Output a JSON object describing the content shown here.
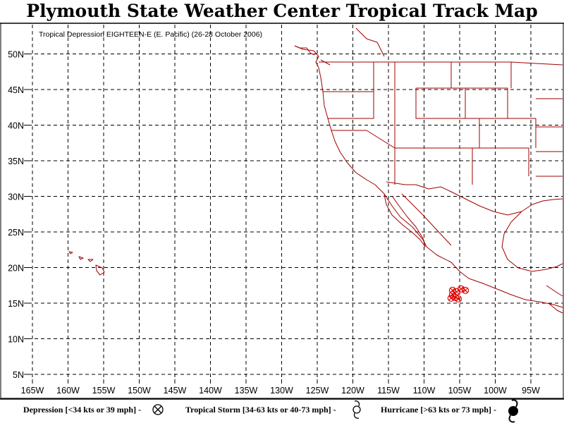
{
  "map": {
    "title": "Plymouth State Weather Center Tropical Track Map",
    "subtitle": "Tropical Depression EIGHTEEN-E (E. Pacific) (26-28 October 2006)",
    "lat_labels": [
      "50N",
      "45N",
      "40N",
      "35N",
      "30N",
      "25N",
      "20N",
      "15N",
      "10N",
      "5N"
    ],
    "lon_labels": [
      "165W",
      "160W",
      "155W",
      "150W",
      "145W",
      "140W",
      "135W",
      "130W",
      "125W",
      "120W",
      "115W",
      "110W",
      "105W",
      "100W",
      "95W"
    ],
    "lat_values": [
      50,
      45,
      40,
      35,
      30,
      25,
      20,
      15,
      10,
      5
    ],
    "lon_values": [
      -165,
      -160,
      -155,
      -150,
      -145,
      -140,
      -135,
      -130,
      -125,
      -120,
      -115,
      -110,
      -105,
      -100,
      -95
    ],
    "colors": {
      "coastline": "#a00000",
      "track": "#e00000",
      "grid": "#000000"
    }
  },
  "track": {
    "category": "depression",
    "points": [
      {
        "lat": 16.8,
        "lon": -104.2
      },
      {
        "lat": 17.0,
        "lon": -104.8
      },
      {
        "lat": 16.6,
        "lon": -105.4
      },
      {
        "lat": 16.8,
        "lon": -106.0
      },
      {
        "lat": 16.2,
        "lon": -106.0
      },
      {
        "lat": 15.8,
        "lon": -105.6
      },
      {
        "lat": 15.6,
        "lon": -105.2
      },
      {
        "lat": 15.7,
        "lon": -106.2
      }
    ]
  },
  "legend": {
    "depression": "Depression [<34 kts or 39 mph] -",
    "storm": "Tropical Storm [34-63 kts or 40-73 mph] -",
    "hurricane": "Hurricane [>63 kts or 73 mph] -"
  }
}
